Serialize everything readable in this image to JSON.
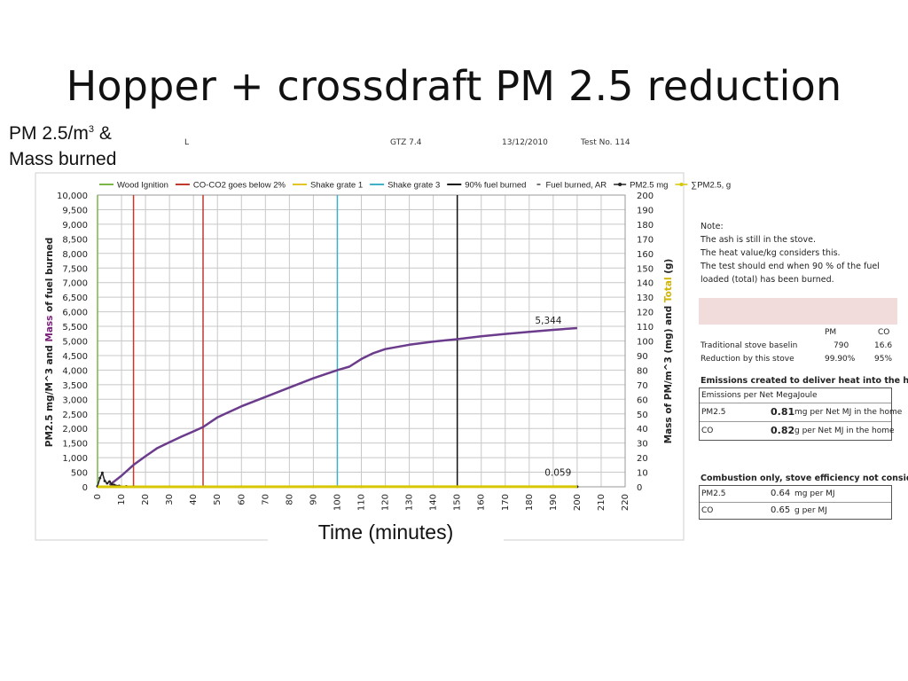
{
  "slide": {
    "title": "Hopper + crossdraft PM 2.5 reduction",
    "overlay_line1": "PM 2.5/m",
    "overlay_sup": "3",
    "overlay_amp": " &",
    "overlay_line2": "Mass burned",
    "time_label": "Time (minutes)"
  },
  "header": {
    "left_fragment": "L",
    "model": "GTZ 7.4",
    "date": "13/12/2010",
    "test": "Test No.  114"
  },
  "colors": {
    "wood_ignition": "#7ab648",
    "co_co2": "#c0392b",
    "shake1": "#e6c229",
    "shake3": "#3fb0c9",
    "fuel90": "#111111",
    "fuel_burned": "#6b3b8c",
    "pm25": "#222222",
    "sum_pm25": "#d8c700",
    "grid": "#c8c8c8"
  },
  "chart_data": {
    "type": "line",
    "x_ticks": [
      0,
      10,
      20,
      30,
      40,
      50,
      60,
      70,
      80,
      90,
      100,
      110,
      120,
      130,
      140,
      150,
      160,
      170,
      180,
      190,
      200,
      210,
      220
    ],
    "xlim": [
      0,
      220
    ],
    "ylim_left": [
      0,
      10000
    ],
    "ylim_right": [
      0,
      200
    ],
    "y_left_ticks": [
      "0",
      "500",
      "1,000",
      "1,500",
      "2,000",
      "2,500",
      "3,000",
      "3,500",
      "4,000",
      "4,500",
      "5,000",
      "5,500",
      "6,000",
      "6,500",
      "7,000",
      "7,500",
      "8,000",
      "8,500",
      "9,000",
      "9,500",
      "10,000"
    ],
    "y_right_ticks": [
      "0",
      "10",
      "20",
      "30",
      "40",
      "50",
      "60",
      "70",
      "80",
      "90",
      "100",
      "110",
      "120",
      "130",
      "140",
      "150",
      "160",
      "170",
      "180",
      "190",
      "200"
    ],
    "ylabel_left_part1": "PM2.5 mg/M^3  and  ",
    "ylabel_left_part2": "Mass",
    "ylabel_left_part3": " of fuel burned",
    "ylabel_right_part1": "Mass of PM/m^3 (mg)  and  ",
    "ylabel_right_part2": "Total",
    "ylabel_right_part3": " (g)",
    "legend": [
      {
        "name": "Wood Ignition",
        "key": "wood_ignition",
        "style": "line"
      },
      {
        "name": "CO-CO2 goes below 2%",
        "key": "co_co2",
        "style": "line"
      },
      {
        "name": "Shake grate 1",
        "key": "shake1",
        "style": "line"
      },
      {
        "name": "Shake grate 3",
        "key": "shake3",
        "style": "line"
      },
      {
        "name": "90% fuel burned",
        "key": "fuel90",
        "style": "line"
      },
      {
        "name": "Fuel burned, AR",
        "key": "fuel_burned",
        "style": "dash"
      },
      {
        "name": "PM2.5 mg",
        "key": "pm25",
        "style": "marker"
      },
      {
        "name": "∑PM2.5, g",
        "key": "sum_pm25",
        "style": "marker"
      }
    ],
    "vertical_lines": [
      {
        "x": 0,
        "key": "wood_ignition"
      },
      {
        "x": 15,
        "key": "co_co2"
      },
      {
        "x": 44,
        "key": "co_co2"
      },
      {
        "x": 100,
        "key": "shake3"
      },
      {
        "x": 150,
        "key": "fuel90"
      }
    ],
    "series": [
      {
        "name": "Fuel burned, AR",
        "key": "fuel_burned",
        "axis": "left",
        "x": [
          5,
          10,
          15,
          20,
          25,
          30,
          35,
          40,
          44,
          50,
          60,
          70,
          80,
          90,
          100,
          105,
          110,
          115,
          120,
          130,
          140,
          150,
          160,
          170,
          180,
          190,
          200
        ],
        "y": [
          60,
          380,
          750,
          1050,
          1330,
          1530,
          1720,
          1900,
          2050,
          2380,
          2760,
          3080,
          3400,
          3720,
          4000,
          4120,
          4380,
          4580,
          4720,
          4870,
          4980,
          5060,
          5160,
          5240,
          5310,
          5380,
          5440
        ]
      },
      {
        "name": "PM2.5 mg",
        "key": "pm25",
        "axis": "left",
        "x": [
          0,
          1,
          2,
          3,
          4,
          5,
          6,
          7,
          9,
          12,
          15,
          30,
          45,
          60,
          90,
          110,
          150,
          200
        ],
        "y": [
          20,
          300,
          480,
          200,
          120,
          180,
          90,
          60,
          30,
          15,
          10,
          5,
          5,
          4,
          4,
          3,
          3,
          3
        ]
      },
      {
        "name": "∑PM2.5, g",
        "key": "sum_pm25",
        "axis": "right",
        "x": [
          0,
          50,
          100,
          150,
          200
        ],
        "y": [
          0.0,
          0.02,
          0.04,
          0.05,
          0.059
        ]
      }
    ],
    "annotations": [
      {
        "text": "5,344",
        "x": 188,
        "y": 5600
      },
      {
        "text": "0.059",
        "x": 192,
        "y": 380
      }
    ]
  },
  "notes": {
    "lines": [
      "Note:",
      "The ash is still in the stove.",
      "The heat value/kg considers this.",
      "The test should end when 90 % of the fuel",
      "loaded (total) has been burned."
    ]
  },
  "comparison": {
    "col_pm": "PM",
    "col_co": "CO",
    "rows": [
      {
        "label": "Traditional stove baselin",
        "pm": "790",
        "co": "16.6"
      },
      {
        "label": "Reduction by this stove",
        "pm": "99.90%",
        "co": "95%"
      }
    ]
  },
  "emissions_home": {
    "title": "Emissions created to deliver heat into the home",
    "header": "Emissions per Net MegaJoule",
    "rows": [
      {
        "label": "PM2.5",
        "value": "0.81",
        "unit": "mg per Net MJ in the home"
      },
      {
        "label": "CO",
        "value": "0.82",
        "unit": "g per Net MJ in the home"
      }
    ]
  },
  "combustion": {
    "title": "Combustion only, stove efficiency not considered",
    "rows": [
      {
        "label": "PM2.5",
        "value": "0.64",
        "unit": "mg per MJ"
      },
      {
        "label": "CO",
        "value": "0.65",
        "unit": "g per MJ"
      }
    ]
  }
}
